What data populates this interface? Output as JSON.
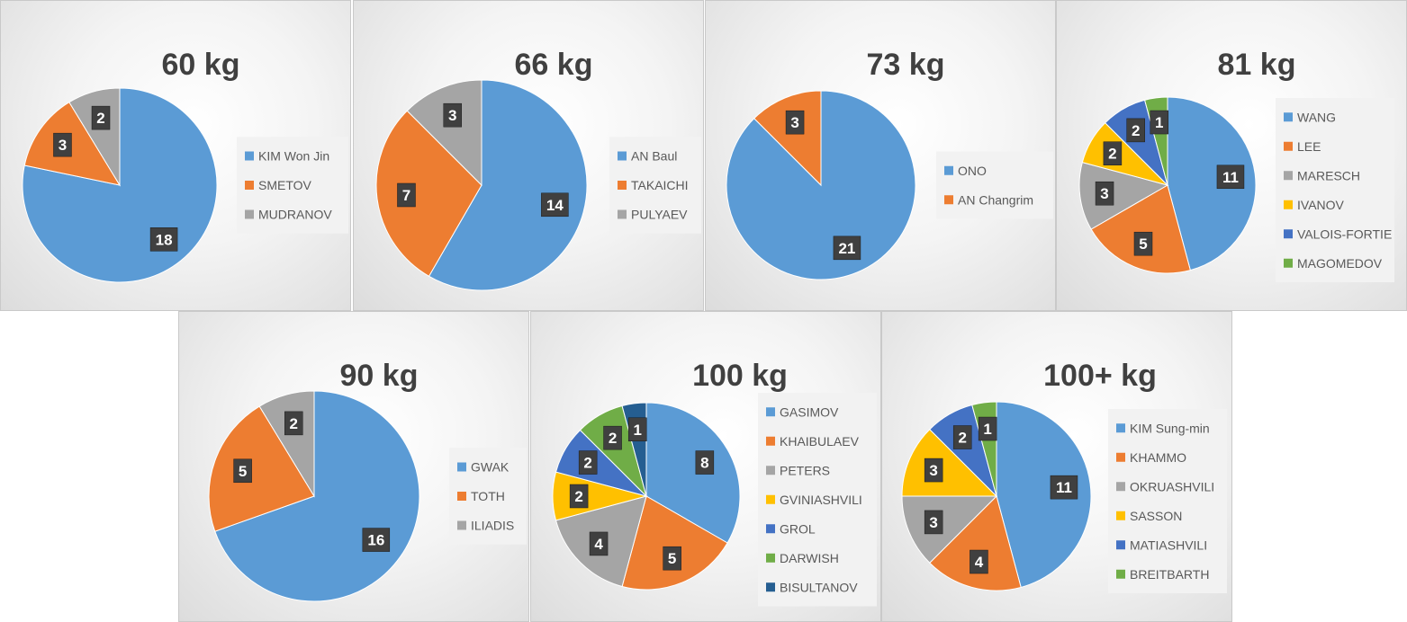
{
  "colors": [
    "#5b9bd5",
    "#ed7d31",
    "#a5a5a5",
    "#ffc000",
    "#4472c4",
    "#70ad47",
    "#255e91"
  ],
  "chart_data": [
    {
      "type": "pie",
      "title": "60 kg",
      "categories": [
        "KIM Won Jin",
        "SMETOV",
        "MUDRANOV"
      ],
      "values": [
        18,
        3,
        2
      ]
    },
    {
      "type": "pie",
      "title": "66 kg",
      "categories": [
        "AN Baul",
        "TAKAICHI",
        "PULYAEV"
      ],
      "values": [
        14,
        7,
        3
      ]
    },
    {
      "type": "pie",
      "title": "73 kg",
      "categories": [
        "ONO",
        "AN Changrim"
      ],
      "values": [
        21,
        3
      ]
    },
    {
      "type": "pie",
      "title": "81 kg",
      "categories": [
        "WANG",
        "LEE",
        "MARESCH",
        "IVANOV",
        "VALOIS-FORTIE",
        "MAGOMEDOV"
      ],
      "values": [
        11,
        5,
        3,
        2,
        2,
        1
      ]
    },
    {
      "type": "pie",
      "title": "90 kg",
      "categories": [
        "GWAK",
        "TOTH",
        "ILIADIS"
      ],
      "values": [
        16,
        5,
        2
      ]
    },
    {
      "type": "pie",
      "title": "100 kg",
      "categories": [
        "GASIMOV",
        "KHAIBULAEV",
        "PETERS",
        "GVINIASHVILI",
        "GROL",
        "DARWISH",
        "BISULTANOV"
      ],
      "values": [
        8,
        5,
        4,
        2,
        2,
        2,
        1
      ]
    },
    {
      "type": "pie",
      "title": "100+ kg",
      "categories": [
        "KIM Sung-min",
        "KHAMMO",
        "OKRUASHVILI",
        "SASSON",
        "MATIASHVILI",
        "BREITBARTH"
      ],
      "values": [
        11,
        4,
        3,
        3,
        2,
        1
      ]
    }
  ]
}
